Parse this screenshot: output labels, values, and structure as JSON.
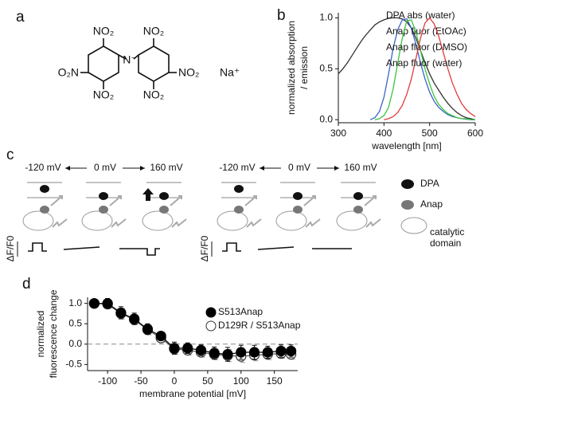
{
  "panel_labels": [
    "a",
    "b",
    "c",
    "d"
  ],
  "structure": {
    "labels": [
      "NO₂",
      "NO₂",
      "O₂N",
      "N⁻",
      "NO₂",
      "NO₂",
      "NO₂",
      "Na⁺"
    ]
  },
  "diagram": {
    "voltages": [
      "-120 mV",
      "0 mV",
      "160 mV"
    ],
    "legend_dpa": "DPA",
    "legend_anap": "Anap",
    "legend_domain": [
      "catalytic",
      "domain"
    ],
    "trace_label": "ΔF/F0"
  },
  "chart_data": [
    {
      "type": "line",
      "xlabel": "wavelength [nm]",
      "ylabel": [
        "normalized absorption",
        "/ emission"
      ],
      "x": [
        300,
        310,
        320,
        330,
        340,
        350,
        360,
        370,
        380,
        390,
        400,
        410,
        420,
        430,
        440,
        450,
        460,
        470,
        480,
        490,
        500,
        510,
        520,
        530,
        540,
        550,
        560,
        570,
        580,
        590,
        600
      ],
      "xlim": [
        300,
        600
      ],
      "xticks": [
        300,
        400,
        500,
        600
      ],
      "ylim": [
        -0.03,
        1.05
      ],
      "yticks": [
        {
          "value": 0,
          "label": "0.0"
        },
        {
          "value": 0.5,
          "label": "0.5"
        },
        {
          "value": 1,
          "label": "1.0"
        }
      ],
      "series": [
        {
          "name": "DPA abs (water)",
          "color": "#333333",
          "values": [
            0.45,
            0.5,
            0.56,
            0.63,
            0.7,
            0.77,
            0.83,
            0.88,
            0.93,
            0.96,
            0.98,
            0.995,
            1.0,
            1.0,
            0.99,
            0.96,
            0.9,
            0.8,
            0.68,
            0.56,
            0.45,
            0.36,
            0.29,
            0.22,
            0.16,
            0.11,
            0.07,
            0.04,
            0.02,
            0.01,
            0
          ]
        },
        {
          "name": "Anap fluor (EtOAc)",
          "color": "#3a64c8",
          "values": [
            null,
            null,
            null,
            null,
            null,
            null,
            null,
            0,
            0.02,
            0.08,
            0.22,
            0.45,
            0.7,
            0.88,
            0.98,
            0.99,
            0.9,
            0.74,
            0.56,
            0.4,
            0.27,
            0.18,
            0.12,
            0.08,
            0.05,
            0.03,
            0.02,
            0.01,
            0.005,
            0,
            0
          ]
        },
        {
          "name": "Anap fluor (DMSO)",
          "color": "#3cc43c",
          "values": [
            null,
            null,
            null,
            null,
            null,
            null,
            null,
            null,
            0,
            0.01,
            0.04,
            0.12,
            0.3,
            0.55,
            0.8,
            0.97,
            0.98,
            0.86,
            0.68,
            0.5,
            0.35,
            0.23,
            0.15,
            0.1,
            0.06,
            0.04,
            0.02,
            0.01,
            0.01,
            0,
            0
          ]
        },
        {
          "name": "Anap fluor (water)",
          "color": "#e23c3c",
          "values": [
            null,
            null,
            null,
            null,
            null,
            null,
            null,
            null,
            null,
            null,
            0,
            0.01,
            0.03,
            0.07,
            0.14,
            0.25,
            0.4,
            0.6,
            0.8,
            0.95,
            1.0,
            0.94,
            0.82,
            0.66,
            0.5,
            0.36,
            0.25,
            0.16,
            0.1,
            0.06,
            0.03
          ]
        }
      ]
    },
    {
      "type": "errorbar",
      "xlabel": "membrane potential [mV]",
      "ylabel": [
        "normalized",
        "fluorescence change"
      ],
      "x": [
        -120,
        -100,
        -80,
        -60,
        -40,
        -20,
        0,
        20,
        40,
        60,
        80,
        100,
        120,
        140,
        160,
        175
      ],
      "xlim": [
        -130,
        185
      ],
      "xticks": [
        -100,
        -50,
        0,
        50,
        100,
        150
      ],
      "ylim": [
        -0.65,
        1.15
      ],
      "yticks": [
        {
          "value": -0.5,
          "label": "-0.5"
        },
        {
          "value": 0,
          "label": "0.0"
        },
        {
          "value": 0.5,
          "label": "0.5"
        },
        {
          "value": 1,
          "label": "1.0"
        }
      ],
      "hline": 0,
      "series": [
        {
          "name": "S513Anap",
          "color": "#000000",
          "filled": true,
          "values": [
            1.0,
            1.0,
            0.77,
            0.62,
            0.37,
            0.2,
            -0.1,
            -0.1,
            -0.15,
            -0.22,
            -0.25,
            -0.2,
            -0.2,
            -0.2,
            -0.17,
            -0.17
          ],
          "errors": [
            0.08,
            0.12,
            0.15,
            0.14,
            0.13,
            0.1,
            0.15,
            0.13,
            0.13,
            0.15,
            0.17,
            0.17,
            0.17,
            0.15,
            0.15,
            0.15
          ]
        },
        {
          "name": "D129R / S513Anap",
          "color": "#555555",
          "filled": false,
          "values": [
            1.0,
            0.98,
            0.75,
            0.6,
            0.35,
            0.15,
            -0.12,
            -0.15,
            -0.2,
            -0.25,
            -0.28,
            -0.3,
            -0.27,
            -0.25,
            -0.23,
            -0.25
          ],
          "errors": [
            0.06,
            0.1,
            0.13,
            0.12,
            0.12,
            0.1,
            0.13,
            0.12,
            0.12,
            0.13,
            0.15,
            0.15,
            0.14,
            0.13,
            0.12,
            0.12
          ]
        }
      ]
    }
  ]
}
